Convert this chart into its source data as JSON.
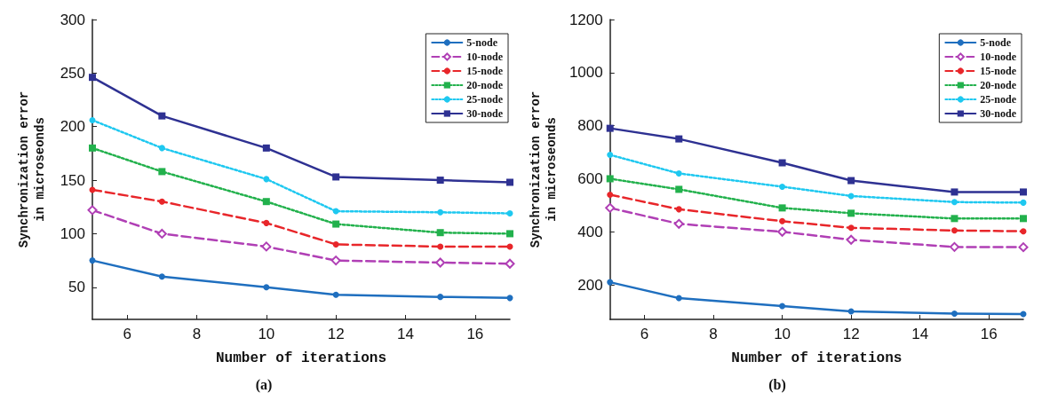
{
  "chart_data": [
    {
      "type": "line",
      "title": "(a)",
      "xlabel": "Number of iterations",
      "ylabel": "Synchronization error\nin microseonds",
      "x": [
        5,
        7,
        10,
        12,
        15,
        17
      ],
      "xlim": [
        5,
        17
      ],
      "xticks": [
        6,
        8,
        10,
        12,
        14,
        16
      ],
      "ylim": [
        20,
        300
      ],
      "yticks": [
        50,
        100,
        150,
        200,
        250,
        300
      ],
      "grid": false,
      "legend": "top right",
      "series": [
        {
          "name": "5-node",
          "color": "#1f6fbf",
          "marker": "circle",
          "line_style": "solid",
          "values": [
            75,
            60,
            50,
            43,
            41,
            40
          ]
        },
        {
          "name": "10-node",
          "color": "#b03fb5",
          "marker": "diamond",
          "line_style": "dashed",
          "values": [
            122,
            100,
            88,
            75,
            73,
            72
          ]
        },
        {
          "name": "15-node",
          "color": "#e8262a",
          "marker": "circle",
          "line_style": "dashed",
          "values": [
            141,
            130,
            110,
            90,
            88,
            88
          ]
        },
        {
          "name": "20-node",
          "color": "#22b14c",
          "marker": "square",
          "line_style": "dotted",
          "values": [
            180,
            158,
            130,
            109,
            101,
            100
          ]
        },
        {
          "name": "25-node",
          "color": "#1ec8f0",
          "marker": "circle",
          "line_style": "dotted",
          "values": [
            206,
            180,
            151,
            121,
            120,
            119
          ]
        },
        {
          "name": "30-node",
          "color": "#2e3192",
          "marker": "square",
          "line_style": "solid",
          "values": [
            246,
            210,
            180,
            153,
            150,
            148
          ]
        }
      ]
    },
    {
      "type": "line",
      "title": "(b)",
      "xlabel": "Number of iterations",
      "ylabel": "Synchronization error\nin microseonds",
      "x": [
        5,
        7,
        10,
        12,
        15,
        17
      ],
      "xlim": [
        5,
        17
      ],
      "xticks": [
        6,
        8,
        10,
        12,
        14,
        16
      ],
      "ylim": [
        70,
        1200
      ],
      "yticks": [
        200,
        400,
        600,
        800,
        1000,
        1200
      ],
      "grid": false,
      "legend": "top right",
      "series": [
        {
          "name": "5-node",
          "color": "#1f6fbf",
          "marker": "circle",
          "line_style": "solid",
          "values": [
            210,
            150,
            120,
            100,
            92,
            90
          ]
        },
        {
          "name": "10-node",
          "color": "#b03fb5",
          "marker": "diamond",
          "line_style": "dashed",
          "values": [
            490,
            430,
            400,
            370,
            343,
            342
          ]
        },
        {
          "name": "15-node",
          "color": "#e8262a",
          "marker": "circle",
          "line_style": "dashed",
          "values": [
            540,
            485,
            440,
            415,
            405,
            402
          ]
        },
        {
          "name": "20-node",
          "color": "#22b14c",
          "marker": "square",
          "line_style": "dotted",
          "values": [
            600,
            560,
            490,
            470,
            450,
            450
          ]
        },
        {
          "name": "25-node",
          "color": "#1ec8f0",
          "marker": "circle",
          "line_style": "dotted",
          "values": [
            690,
            620,
            570,
            535,
            512,
            510
          ]
        },
        {
          "name": "30-node",
          "color": "#2e3192",
          "marker": "square",
          "line_style": "solid",
          "values": [
            790,
            750,
            660,
            593,
            550,
            550
          ]
        }
      ]
    }
  ]
}
